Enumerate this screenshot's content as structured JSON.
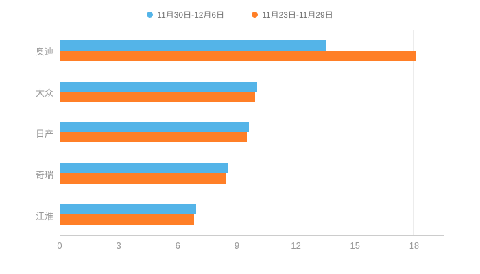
{
  "chart_data": {
    "type": "bar",
    "orientation": "horizontal",
    "title": "",
    "categories": [
      "奥迪",
      "大众",
      "日产",
      "奇瑞",
      "江淮"
    ],
    "series": [
      {
        "name": "11月30日-12月6日",
        "color": "#54b4e8",
        "values": [
          13.5,
          10.0,
          9.6,
          8.5,
          6.9
        ]
      },
      {
        "name": "11月23日-11月29日",
        "color": "#ff7f27",
        "values": [
          18.1,
          9.9,
          9.5,
          8.4,
          6.8
        ]
      }
    ],
    "xlim": [
      0,
      19.5
    ],
    "xticks": [
      0,
      3,
      6,
      9,
      12,
      15,
      18
    ],
    "grid": true,
    "legend_position": "top",
    "axis_color": "#cccccc",
    "label_color": "#999999",
    "background": "#ffffff"
  }
}
